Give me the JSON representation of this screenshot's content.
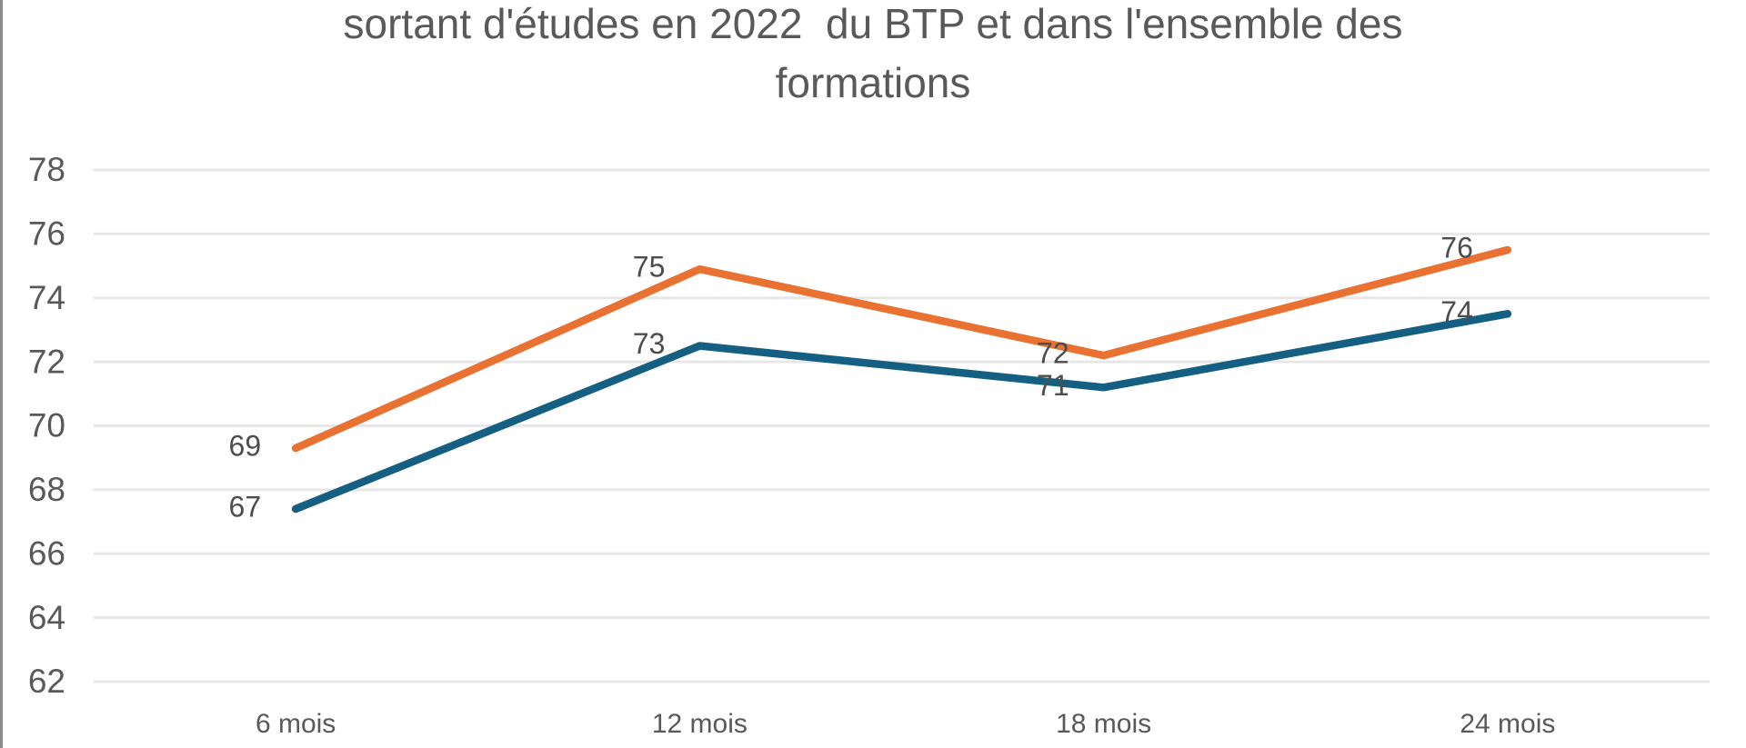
{
  "chart_data": {
    "type": "line",
    "title": "sortant d'études en 2022  du BTP et dans l'ensemble des\nformations",
    "categories": [
      "6 mois",
      "12 mois",
      "18 mois",
      "24 mois"
    ],
    "series": [
      {
        "name": "orange-line",
        "color": "#E97132",
        "values": [
          69.3,
          74.9,
          72.2,
          75.5
        ],
        "data_labels": [
          "69",
          "75",
          "72",
          "76"
        ]
      },
      {
        "name": "blue-line",
        "color": "#156082",
        "values": [
          67.4,
          72.5,
          71.2,
          73.5
        ],
        "data_labels": [
          "67",
          "73",
          "71",
          "74"
        ]
      }
    ],
    "xlabel": "",
    "ylabel": "",
    "ylim": [
      62,
      78
    ],
    "ytick_step": 2,
    "ytick_labels": [
      "62",
      "64",
      "66",
      "68",
      "70",
      "72",
      "74",
      "76",
      "78"
    ],
    "xtick_labels": [
      "6 mois",
      "12 mois",
      "18 mois",
      "24 mois"
    ],
    "grid": true,
    "legend_position": "none",
    "data_label_position": "left-of-point",
    "colors": {
      "grid_line": "#e7e7e7",
      "axis_text": "#595959",
      "data_label_text": "#4d4d4d",
      "title_text": "#595959",
      "window_border": "#8c8c8c",
      "background": "#ffffff"
    }
  }
}
